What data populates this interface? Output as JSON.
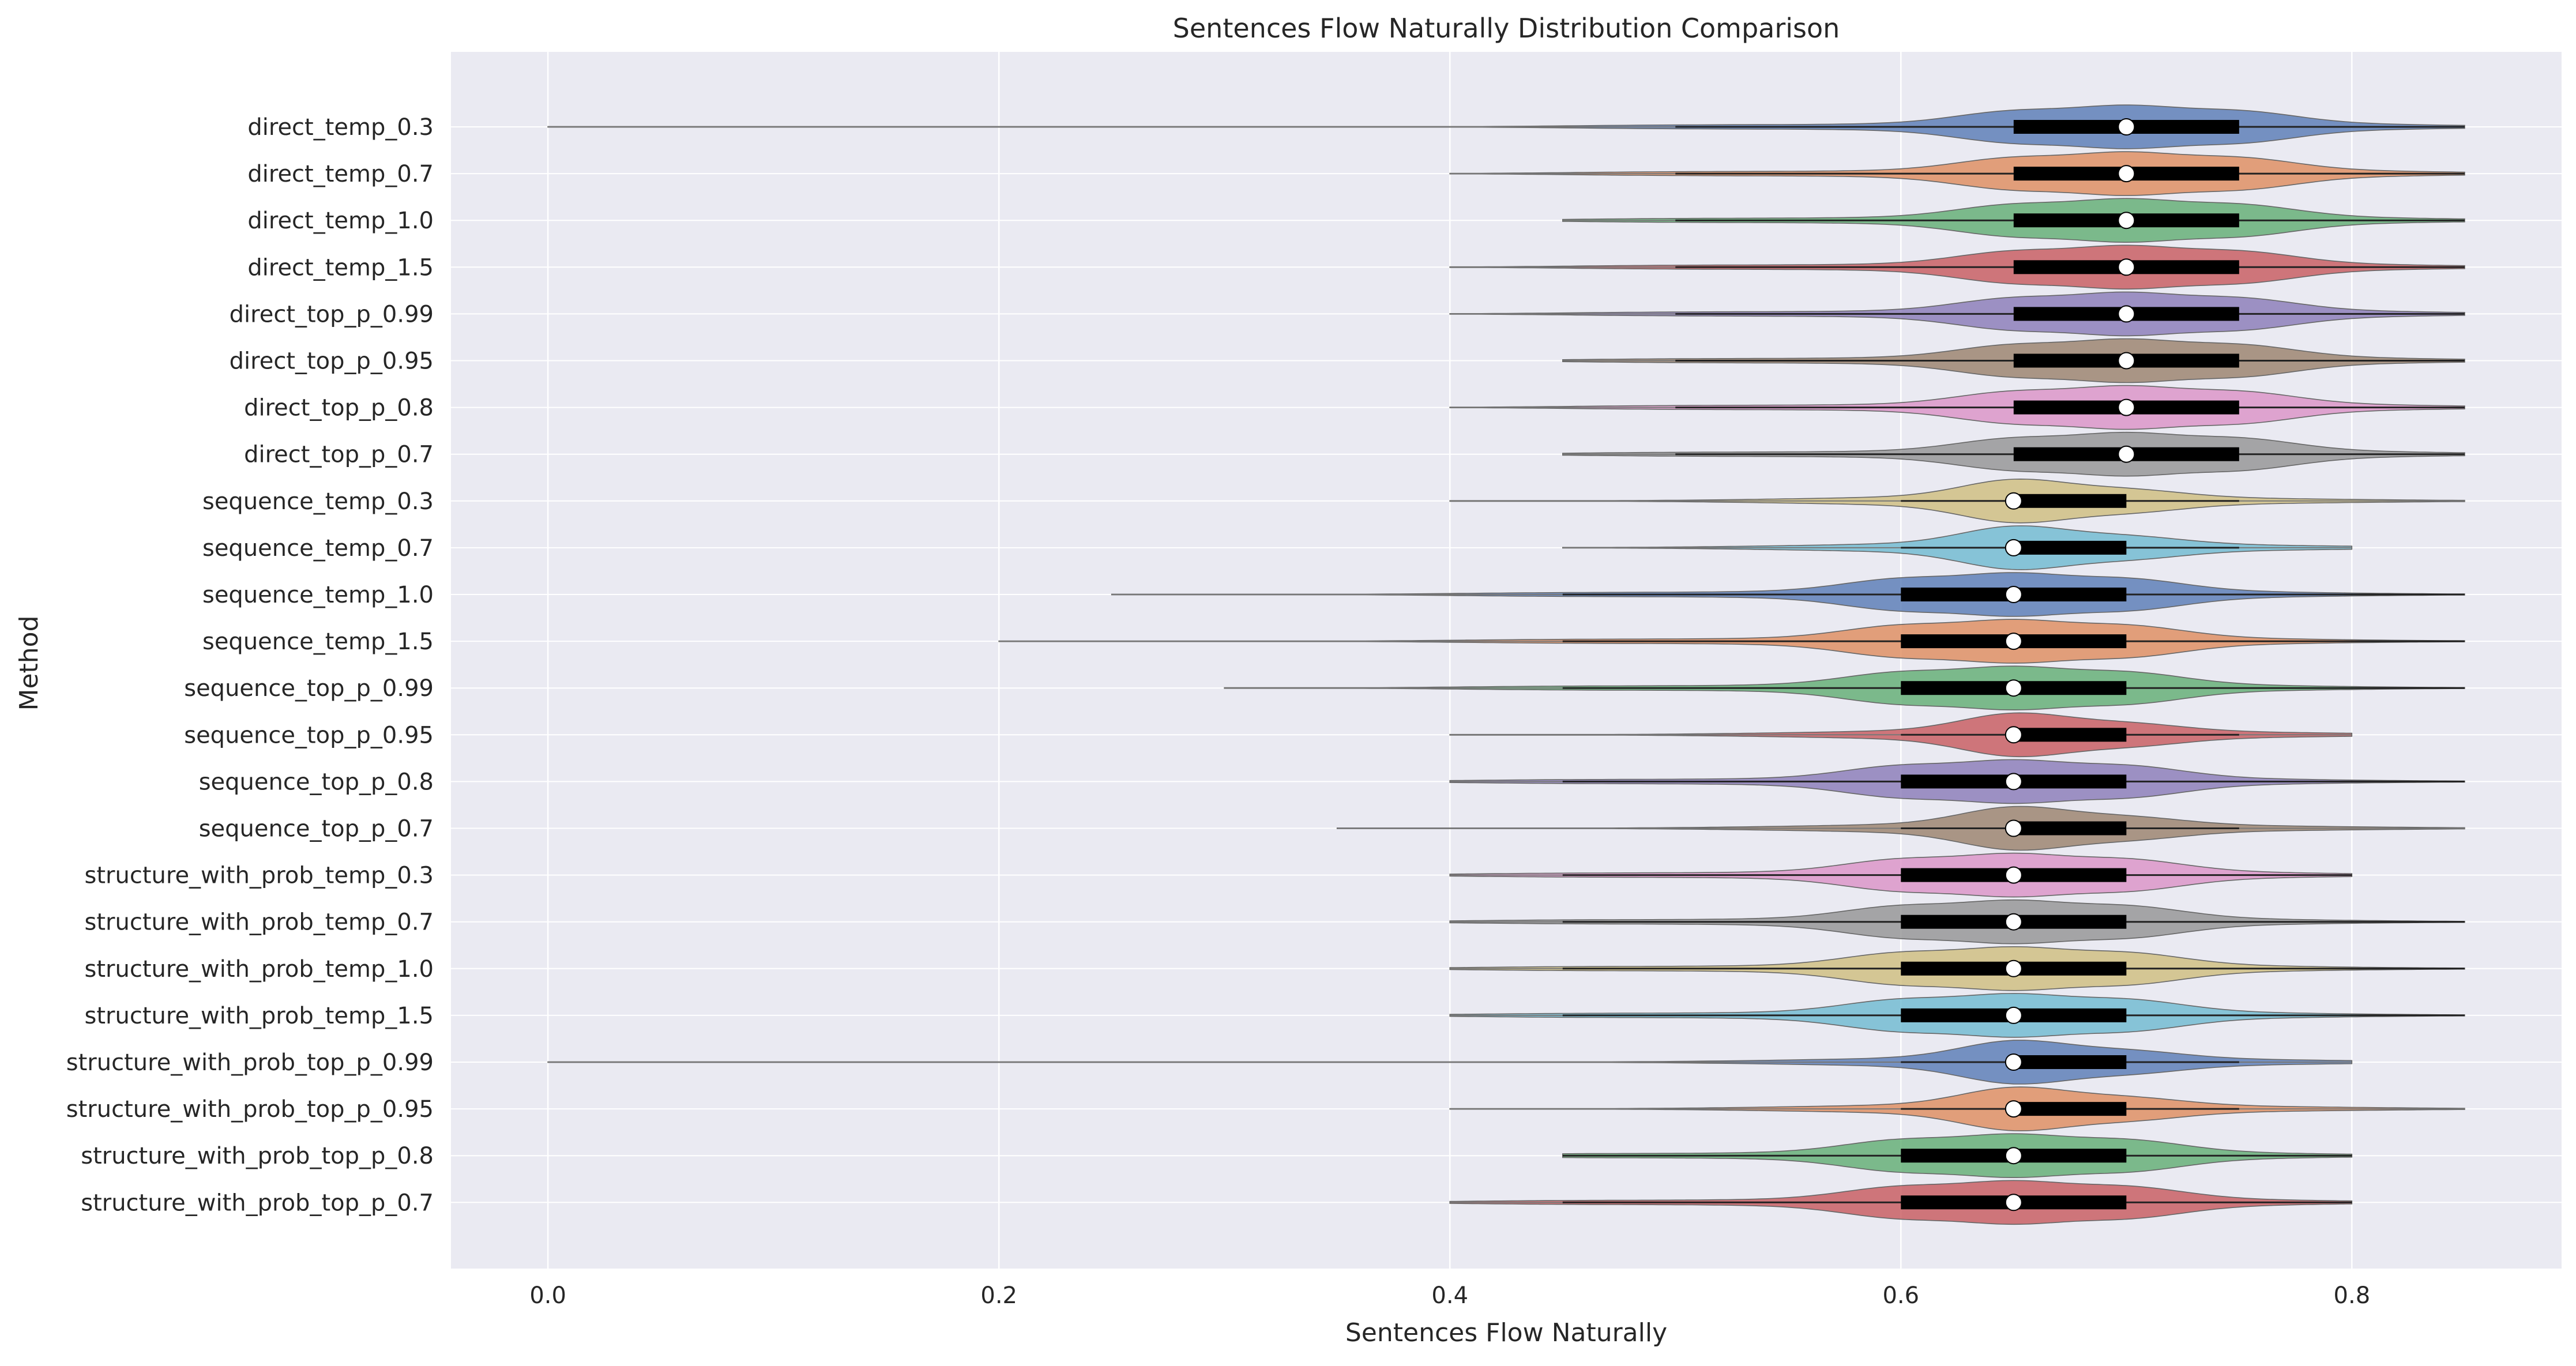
{
  "chart_data": {
    "type": "violin",
    "orientation": "horizontal",
    "title": "Sentences Flow Naturally Distribution Comparison",
    "xlabel": "Sentences Flow Naturally",
    "ylabel": "Method",
    "xlim": [
      -0.043,
      0.893
    ],
    "xticks": [
      0.0,
      0.2,
      0.4,
      0.6,
      0.8
    ],
    "xtick_labels": [
      "0.0",
      "0.2",
      "0.4",
      "0.6",
      "0.8"
    ],
    "grid": true,
    "background": "#eaeaf2",
    "palette": [
      "#4c72b0",
      "#dd8452",
      "#55a868",
      "#c44e52",
      "#8172b3",
      "#937860",
      "#da8bc3",
      "#8c8c8c",
      "#ccb974",
      "#64b5cd"
    ],
    "series": [
      {
        "name": "direct_temp_0.3",
        "min": 0.0,
        "max": 0.85,
        "q1": 0.65,
        "median": 0.7,
        "q3": 0.75,
        "whisker_low": 0.5,
        "whisker_high": 0.85
      },
      {
        "name": "direct_temp_0.7",
        "min": 0.4,
        "max": 0.85,
        "q1": 0.65,
        "median": 0.7,
        "q3": 0.75,
        "whisker_low": 0.5,
        "whisker_high": 0.85
      },
      {
        "name": "direct_temp_1.0",
        "min": 0.45,
        "max": 0.85,
        "q1": 0.65,
        "median": 0.7,
        "q3": 0.75,
        "whisker_low": 0.5,
        "whisker_high": 0.85
      },
      {
        "name": "direct_temp_1.5",
        "min": 0.4,
        "max": 0.85,
        "q1": 0.65,
        "median": 0.7,
        "q3": 0.75,
        "whisker_low": 0.5,
        "whisker_high": 0.85
      },
      {
        "name": "direct_top_p_0.99",
        "min": 0.4,
        "max": 0.85,
        "q1": 0.65,
        "median": 0.7,
        "q3": 0.75,
        "whisker_low": 0.5,
        "whisker_high": 0.85
      },
      {
        "name": "direct_top_p_0.95",
        "min": 0.45,
        "max": 0.85,
        "q1": 0.65,
        "median": 0.7,
        "q3": 0.75,
        "whisker_low": 0.5,
        "whisker_high": 0.85
      },
      {
        "name": "direct_top_p_0.8",
        "min": 0.4,
        "max": 0.85,
        "q1": 0.65,
        "median": 0.7,
        "q3": 0.75,
        "whisker_low": 0.5,
        "whisker_high": 0.85
      },
      {
        "name": "direct_top_p_0.7",
        "min": 0.45,
        "max": 0.85,
        "q1": 0.65,
        "median": 0.7,
        "q3": 0.75,
        "whisker_low": 0.5,
        "whisker_high": 0.85
      },
      {
        "name": "sequence_temp_0.3",
        "min": 0.4,
        "max": 0.85,
        "q1": 0.65,
        "median": 0.65,
        "q3": 0.7,
        "whisker_low": 0.6,
        "whisker_high": 0.75
      },
      {
        "name": "sequence_temp_0.7",
        "min": 0.45,
        "max": 0.8,
        "q1": 0.65,
        "median": 0.65,
        "q3": 0.7,
        "whisker_low": 0.6,
        "whisker_high": 0.75
      },
      {
        "name": "sequence_temp_1.0",
        "min": 0.25,
        "max": 0.85,
        "q1": 0.6,
        "median": 0.65,
        "q3": 0.7,
        "whisker_low": 0.45,
        "whisker_high": 0.85
      },
      {
        "name": "sequence_temp_1.5",
        "min": 0.2,
        "max": 0.85,
        "q1": 0.6,
        "median": 0.65,
        "q3": 0.7,
        "whisker_low": 0.45,
        "whisker_high": 0.85
      },
      {
        "name": "sequence_top_p_0.99",
        "min": 0.3,
        "max": 0.85,
        "q1": 0.6,
        "median": 0.65,
        "q3": 0.7,
        "whisker_low": 0.45,
        "whisker_high": 0.85
      },
      {
        "name": "sequence_top_p_0.95",
        "min": 0.4,
        "max": 0.8,
        "q1": 0.65,
        "median": 0.65,
        "q3": 0.7,
        "whisker_low": 0.6,
        "whisker_high": 0.75
      },
      {
        "name": "sequence_top_p_0.8",
        "min": 0.4,
        "max": 0.85,
        "q1": 0.6,
        "median": 0.65,
        "q3": 0.7,
        "whisker_low": 0.45,
        "whisker_high": 0.85
      },
      {
        "name": "sequence_top_p_0.7",
        "min": 0.35,
        "max": 0.85,
        "q1": 0.65,
        "median": 0.65,
        "q3": 0.7,
        "whisker_low": 0.6,
        "whisker_high": 0.75
      },
      {
        "name": "structure_with_prob_temp_0.3",
        "min": 0.4,
        "max": 0.8,
        "q1": 0.6,
        "median": 0.65,
        "q3": 0.7,
        "whisker_low": 0.45,
        "whisker_high": 0.8
      },
      {
        "name": "structure_with_prob_temp_0.7",
        "min": 0.4,
        "max": 0.85,
        "q1": 0.6,
        "median": 0.65,
        "q3": 0.7,
        "whisker_low": 0.45,
        "whisker_high": 0.85
      },
      {
        "name": "structure_with_prob_temp_1.0",
        "min": 0.4,
        "max": 0.85,
        "q1": 0.6,
        "median": 0.65,
        "q3": 0.7,
        "whisker_low": 0.45,
        "whisker_high": 0.85
      },
      {
        "name": "structure_with_prob_temp_1.5",
        "min": 0.4,
        "max": 0.85,
        "q1": 0.6,
        "median": 0.65,
        "q3": 0.7,
        "whisker_low": 0.45,
        "whisker_high": 0.85
      },
      {
        "name": "structure_with_prob_top_p_0.99",
        "min": 0.0,
        "max": 0.8,
        "q1": 0.65,
        "median": 0.65,
        "q3": 0.7,
        "whisker_low": 0.6,
        "whisker_high": 0.75
      },
      {
        "name": "structure_with_prob_top_p_0.95",
        "min": 0.4,
        "max": 0.85,
        "q1": 0.65,
        "median": 0.65,
        "q3": 0.7,
        "whisker_low": 0.6,
        "whisker_high": 0.75
      },
      {
        "name": "structure_with_prob_top_p_0.8",
        "min": 0.45,
        "max": 0.8,
        "q1": 0.6,
        "median": 0.65,
        "q3": 0.7,
        "whisker_low": 0.45,
        "whisker_high": 0.8
      },
      {
        "name": "structure_with_prob_top_p_0.7",
        "min": 0.4,
        "max": 0.8,
        "q1": 0.6,
        "median": 0.65,
        "q3": 0.7,
        "whisker_low": 0.45,
        "whisker_high": 0.8
      }
    ]
  }
}
